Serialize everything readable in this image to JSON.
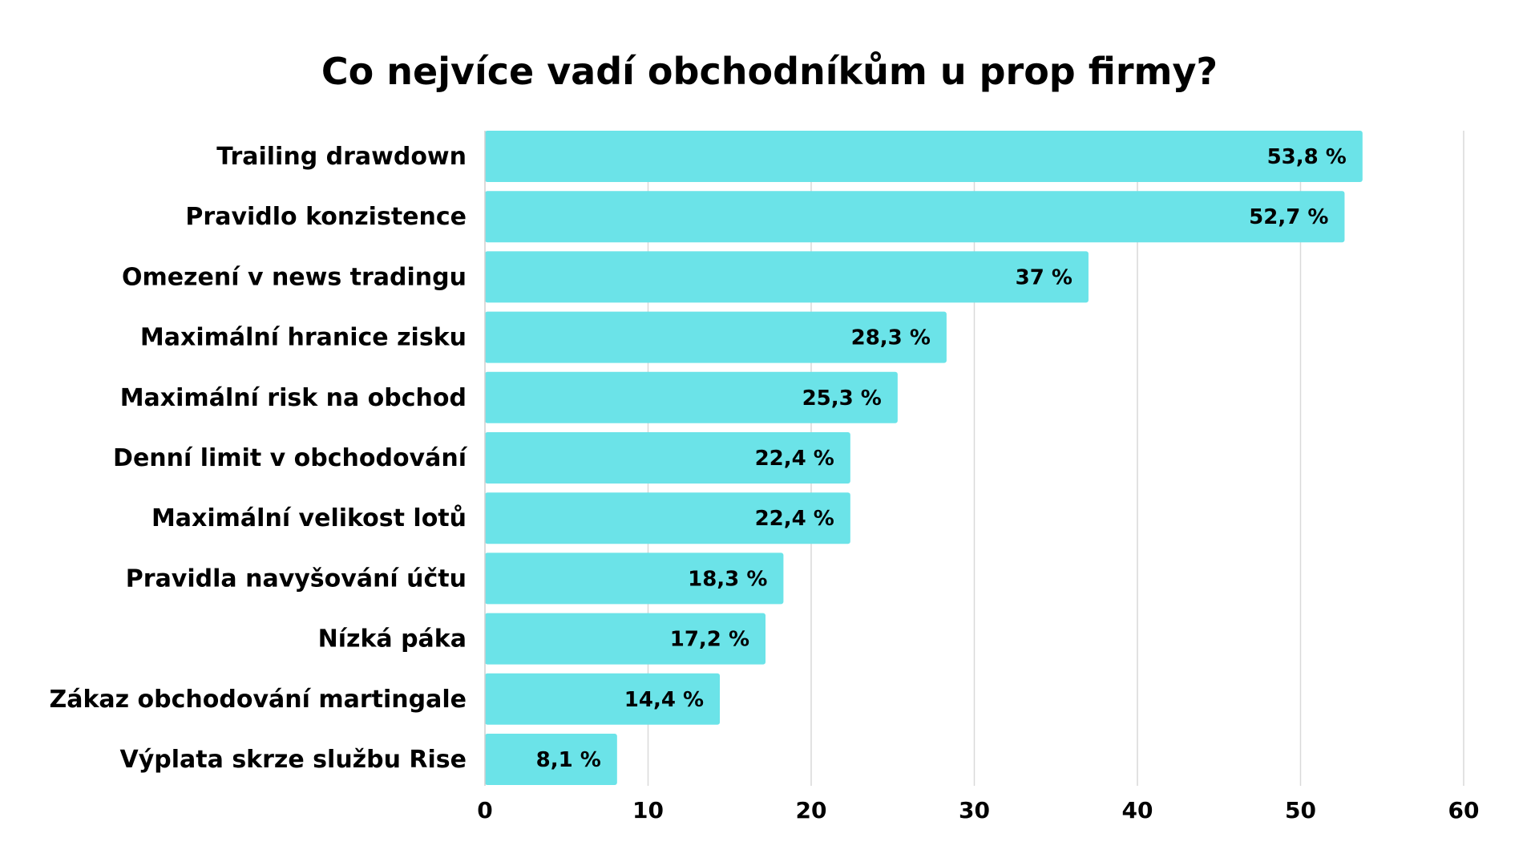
{
  "chart_data": {
    "type": "bar",
    "orientation": "horizontal",
    "title": "Co nejvíce vadí obchodníkům u prop firmy?",
    "xlabel": "",
    "ylabel": "",
    "categories": [
      "Trailing drawdown",
      "Pravidlo konzistence",
      "Omezení v news tradingu",
      "Maximální hranice zisku",
      "Maximální risk na obchod",
      "Denní limit v obchodování",
      "Maximální velikost lotů",
      "Pravidla navyšování účtu",
      "Nízká páka",
      "Zákaz obchodování martingale",
      "Výplata skrze službu Rise"
    ],
    "values": [
      53.8,
      52.7,
      37,
      28.3,
      25.3,
      22.4,
      22.4,
      18.3,
      17.2,
      14.4,
      8.1
    ],
    "data_labels": [
      "53,8 %",
      "52,7 %",
      "37 %",
      "28,3 %",
      "25,3 %",
      "22,4 %",
      "22,4 %",
      "18,3 %",
      "17,2 %",
      "14,4 %",
      "8,1 %"
    ],
    "xlim": [
      0,
      60
    ],
    "x_ticks": [
      0,
      10,
      20,
      30,
      40,
      50,
      60
    ],
    "x_tick_labels": [
      "0",
      "10",
      "20",
      "30",
      "40",
      "50",
      "60"
    ],
    "grid": true,
    "legend": "none",
    "colors": {
      "bar": "#6be3e8",
      "grid": "#d9d9d9",
      "text": "#000000"
    }
  }
}
